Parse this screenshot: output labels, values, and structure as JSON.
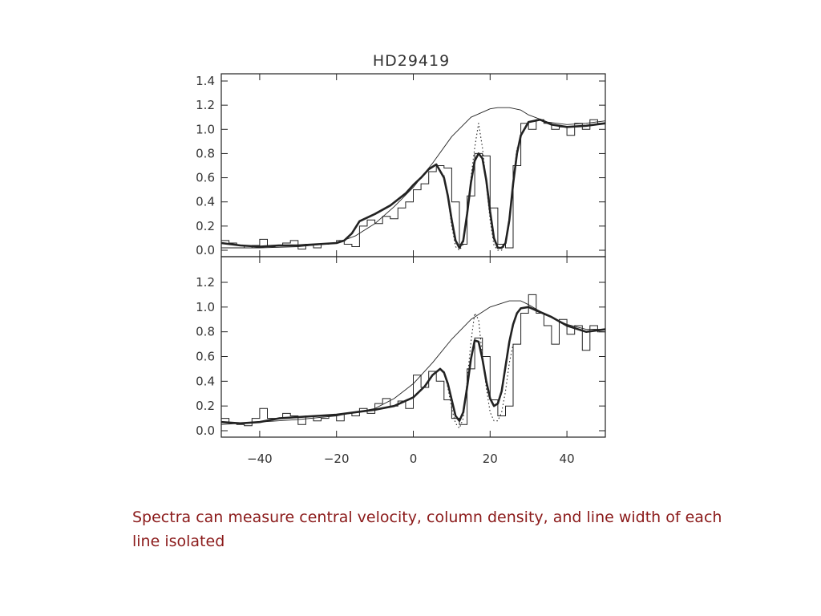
{
  "caption": "Spectra can measure central velocity, column density, and line width of each line isolated",
  "colors": {
    "caption": "#8b1a1a",
    "ink": "#222222"
  },
  "chart_data": [
    {
      "type": "line",
      "title": "HD29419",
      "xlim": [
        -50,
        50
      ],
      "ylim": [
        0,
        1.45
      ],
      "yticks": [
        0.0,
        0.2,
        0.4,
        0.6,
        0.8,
        1.0,
        1.2,
        1.4
      ],
      "yticklabels": [
        "0.0",
        "0.2",
        "0.4",
        "0.6",
        "0.8",
        "1.0",
        "1.2",
        "1.4"
      ],
      "grid": false,
      "series": [
        {
          "style": "histogram",
          "x": [
            -50,
            -48,
            -46,
            -44,
            -42,
            -40,
            -38,
            -36,
            -34,
            -32,
            -30,
            -28,
            -26,
            -24,
            -22,
            -20,
            -18,
            -16,
            -14,
            -12,
            -10,
            -8,
            -6,
            -4,
            -2,
            0,
            2,
            4,
            6,
            8,
            10,
            12,
            14,
            16,
            18,
            20,
            22,
            24,
            26,
            28,
            30,
            32,
            34,
            36,
            38,
            40,
            42,
            44,
            46,
            48
          ],
          "values": [
            0.08,
            0.06,
            0.04,
            0.02,
            0.04,
            0.09,
            0.03,
            0.04,
            0.06,
            0.08,
            0.01,
            0.05,
            0.02,
            0.05,
            0.06,
            0.08,
            0.05,
            0.03,
            0.2,
            0.25,
            0.22,
            0.28,
            0.26,
            0.35,
            0.4,
            0.5,
            0.55,
            0.65,
            0.7,
            0.68,
            0.4,
            0.05,
            0.45,
            0.8,
            0.78,
            0.35,
            0.05,
            0.02,
            0.7,
            1.05,
            1.0,
            1.08,
            1.05,
            1.0,
            1.02,
            0.95,
            1.05,
            1.0,
            1.08,
            1.05
          ]
        },
        {
          "style": "fit",
          "x": [
            -50,
            -45,
            -40,
            -35,
            -30,
            -25,
            -20,
            -18,
            -16,
            -14,
            -10,
            -6,
            -2,
            0,
            2,
            4,
            6,
            8,
            9,
            10,
            11,
            12,
            13,
            14,
            15,
            16,
            17,
            18,
            19,
            20,
            21,
            22,
            23,
            24,
            25,
            26,
            27,
            28,
            30,
            33,
            36,
            40,
            45,
            50
          ],
          "values": [
            0.06,
            0.04,
            0.03,
            0.04,
            0.04,
            0.05,
            0.06,
            0.08,
            0.14,
            0.24,
            0.3,
            0.37,
            0.47,
            0.54,
            0.6,
            0.67,
            0.71,
            0.6,
            0.45,
            0.25,
            0.08,
            0.02,
            0.08,
            0.3,
            0.56,
            0.74,
            0.8,
            0.76,
            0.58,
            0.32,
            0.1,
            0.02,
            0.02,
            0.06,
            0.25,
            0.55,
            0.8,
            0.95,
            1.06,
            1.08,
            1.04,
            1.02,
            1.03,
            1.05
          ]
        },
        {
          "style": "dotted",
          "x": [
            8,
            9,
            10,
            11,
            12,
            13,
            14,
            15,
            16,
            17,
            18,
            19,
            20,
            21,
            22,
            23,
            24,
            25,
            26,
            27
          ],
          "values": [
            0.62,
            0.44,
            0.2,
            0.03,
            0.0,
            0.05,
            0.3,
            0.6,
            0.85,
            1.05,
            0.85,
            0.55,
            0.25,
            0.04,
            0.0,
            0.0,
            0.05,
            0.25,
            0.55,
            0.85
          ]
        },
        {
          "style": "continuum",
          "x": [
            -50,
            -40,
            -30,
            -20,
            -15,
            -10,
            -5,
            0,
            5,
            10,
            15,
            20,
            22,
            25,
            28,
            30,
            35,
            40,
            45,
            50
          ],
          "values": [
            0.02,
            0.02,
            0.03,
            0.06,
            0.12,
            0.22,
            0.36,
            0.52,
            0.72,
            0.94,
            1.1,
            1.17,
            1.18,
            1.18,
            1.16,
            1.12,
            1.06,
            1.04,
            1.05,
            1.07
          ]
        }
      ]
    },
    {
      "type": "line",
      "xlim": [
        -50,
        50
      ],
      "ylim": [
        0,
        1.32
      ],
      "xticks": [
        -40,
        -20,
        0,
        20,
        40
      ],
      "xticklabels": [
        "−40",
        "−20",
        "0",
        "20",
        "40"
      ],
      "yticks": [
        0.0,
        0.2,
        0.4,
        0.6,
        0.8,
        1.0,
        1.2
      ],
      "yticklabels": [
        "0.0",
        "0.2",
        "0.4",
        "0.6",
        "0.8",
        "1.0",
        "1.2"
      ],
      "grid": false,
      "series": [
        {
          "style": "histogram",
          "x": [
            -50,
            -48,
            -46,
            -44,
            -42,
            -40,
            -38,
            -36,
            -34,
            -32,
            -30,
            -28,
            -26,
            -24,
            -22,
            -20,
            -18,
            -16,
            -14,
            -12,
            -10,
            -8,
            -6,
            -4,
            -2,
            0,
            2,
            4,
            6,
            8,
            10,
            12,
            14,
            16,
            18,
            20,
            22,
            24,
            26,
            28,
            30,
            32,
            34,
            36,
            38,
            40,
            42,
            44,
            46,
            48
          ],
          "values": [
            0.1,
            0.06,
            0.05,
            0.04,
            0.1,
            0.18,
            0.1,
            0.1,
            0.14,
            0.12,
            0.05,
            0.12,
            0.08,
            0.1,
            0.12,
            0.08,
            0.14,
            0.12,
            0.18,
            0.14,
            0.22,
            0.26,
            0.2,
            0.24,
            0.18,
            0.45,
            0.35,
            0.48,
            0.4,
            0.25,
            0.1,
            0.05,
            0.5,
            0.75,
            0.6,
            0.25,
            0.12,
            0.2,
            0.7,
            0.95,
            1.1,
            0.95,
            0.85,
            0.7,
            0.9,
            0.78,
            0.85,
            0.65,
            0.85,
            0.8
          ]
        },
        {
          "style": "fit",
          "x": [
            -50,
            -45,
            -40,
            -35,
            -30,
            -25,
            -20,
            -15,
            -10,
            -5,
            0,
            3,
            5,
            7,
            8,
            9,
            10,
            11,
            12,
            13,
            14,
            15,
            16,
            17,
            18,
            19,
            20,
            21,
            22,
            23,
            24,
            25,
            26,
            27,
            28,
            30,
            33,
            36,
            40,
            45,
            50
          ],
          "values": [
            0.07,
            0.06,
            0.07,
            0.1,
            0.11,
            0.12,
            0.13,
            0.15,
            0.17,
            0.2,
            0.27,
            0.36,
            0.45,
            0.5,
            0.47,
            0.38,
            0.25,
            0.12,
            0.08,
            0.15,
            0.35,
            0.58,
            0.73,
            0.72,
            0.58,
            0.4,
            0.26,
            0.2,
            0.22,
            0.32,
            0.52,
            0.72,
            0.86,
            0.95,
            0.99,
            1.0,
            0.96,
            0.92,
            0.85,
            0.8,
            0.82
          ]
        },
        {
          "style": "dotted",
          "x": [
            8,
            9,
            10,
            11,
            12,
            13,
            14,
            15,
            16,
            17,
            18,
            19,
            20,
            21,
            22,
            23,
            24,
            25,
            26
          ],
          "values": [
            0.48,
            0.35,
            0.18,
            0.06,
            0.02,
            0.1,
            0.4,
            0.72,
            0.95,
            0.9,
            0.6,
            0.35,
            0.15,
            0.08,
            0.08,
            0.15,
            0.32,
            0.55,
            0.7
          ]
        },
        {
          "style": "continuum",
          "x": [
            -50,
            -40,
            -30,
            -20,
            -10,
            -5,
            0,
            5,
            10,
            15,
            20,
            25,
            28,
            30,
            35,
            40,
            45,
            50
          ],
          "values": [
            0.05,
            0.07,
            0.09,
            0.12,
            0.18,
            0.26,
            0.38,
            0.55,
            0.74,
            0.9,
            1.0,
            1.05,
            1.05,
            1.02,
            0.93,
            0.86,
            0.82,
            0.82
          ]
        }
      ]
    }
  ]
}
